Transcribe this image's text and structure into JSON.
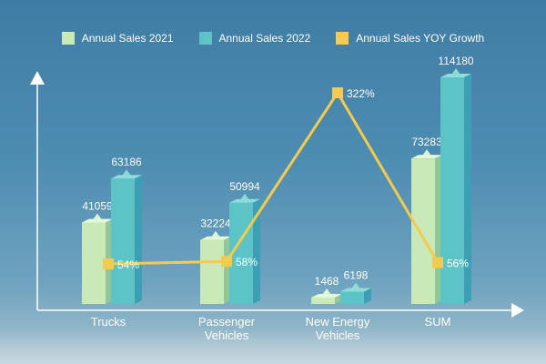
{
  "chart_data": {
    "type": "bar",
    "title": "",
    "xlabel": "",
    "ylabel": "",
    "categories": [
      [
        "Trucks"
      ],
      [
        "Passenger",
        "Vehicles"
      ],
      [
        "New Energy",
        "Vehicles"
      ],
      [
        "SUM"
      ]
    ],
    "series": [
      {
        "name": "Annual Sales 2021",
        "values": [
          41059,
          32224,
          1468,
          73283
        ],
        "labels": [
          "41059",
          "32224",
          "1468",
          "73283"
        ]
      },
      {
        "name": "Annual Sales 2022",
        "values": [
          63186,
          50994,
          6198,
          114180
        ],
        "labels": [
          "63186",
          "50994",
          "6198",
          "114180"
        ]
      }
    ],
    "line_series": {
      "name": "Annual Sales YOY Growth",
      "values": [
        54,
        58,
        322,
        56
      ],
      "labels": [
        "54%",
        "58%",
        "322%",
        "56%"
      ],
      "unit": "%"
    },
    "legend_position": "top",
    "grid": false,
    "colors": {
      "sales_2021": "#c9eab8",
      "sales_2022": "#5cc4c6",
      "growth_line": "#f5cb4f",
      "axis": "#ffffff"
    }
  }
}
